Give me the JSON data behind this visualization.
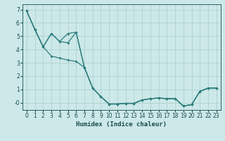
{
  "xlabel": "Humidex (Indice chaleur)",
  "background_color": "#cce8e8",
  "grid_color": "#aacece",
  "line_color": "#2e7d7d",
  "markersize": 2.0,
  "linewidth": 0.9,
  "series1_x": [
    0,
    1,
    2,
    3,
    4,
    5,
    6,
    7,
    8,
    9,
    10,
    11,
    12,
    13,
    14,
    15,
    16,
    17,
    18,
    19,
    20,
    21,
    22,
    23
  ],
  "series1_y": [
    6.9,
    5.5,
    4.2,
    3.5,
    3.35,
    3.2,
    3.1,
    2.65,
    1.1,
    0.45,
    -0.1,
    -0.1,
    -0.05,
    -0.05,
    0.2,
    0.3,
    0.35,
    0.3,
    0.3,
    -0.25,
    -0.15,
    0.85,
    1.1,
    1.1
  ],
  "series2_x": [
    0,
    1,
    2,
    3,
    4,
    5,
    6,
    7,
    8,
    9,
    10,
    11,
    12,
    13,
    14,
    15,
    16,
    17,
    18,
    19,
    20,
    21,
    22,
    23
  ],
  "series2_y": [
    6.9,
    5.5,
    4.2,
    5.2,
    4.6,
    5.2,
    5.3,
    2.65,
    1.1,
    0.45,
    -0.1,
    -0.1,
    -0.05,
    -0.05,
    0.2,
    0.3,
    0.35,
    0.3,
    0.3,
    -0.25,
    -0.15,
    0.85,
    1.1,
    1.1
  ],
  "series3_x": [
    0,
    1,
    2,
    3,
    4,
    5,
    6,
    7,
    8,
    9,
    10,
    11,
    12,
    13,
    14,
    15,
    16,
    17,
    18,
    19,
    20,
    21,
    22,
    23
  ],
  "series3_y": [
    6.9,
    5.5,
    4.2,
    5.2,
    4.6,
    4.5,
    5.3,
    2.65,
    1.1,
    0.45,
    -0.1,
    -0.1,
    -0.05,
    -0.05,
    0.2,
    0.3,
    0.35,
    0.3,
    0.3,
    -0.25,
    -0.15,
    0.85,
    1.1,
    1.1
  ],
  "xlim": [
    -0.5,
    23.5
  ],
  "ylim": [
    -0.55,
    7.4
  ],
  "xticks": [
    0,
    1,
    2,
    3,
    4,
    5,
    6,
    7,
    8,
    9,
    10,
    11,
    12,
    13,
    14,
    15,
    16,
    17,
    18,
    19,
    20,
    21,
    22,
    23
  ],
  "yticks": [
    0,
    1,
    2,
    3,
    4,
    5,
    6,
    7
  ],
  "ytick_labels": [
    "-0",
    "1",
    "2",
    "3",
    "4",
    "5",
    "6",
    "7"
  ]
}
